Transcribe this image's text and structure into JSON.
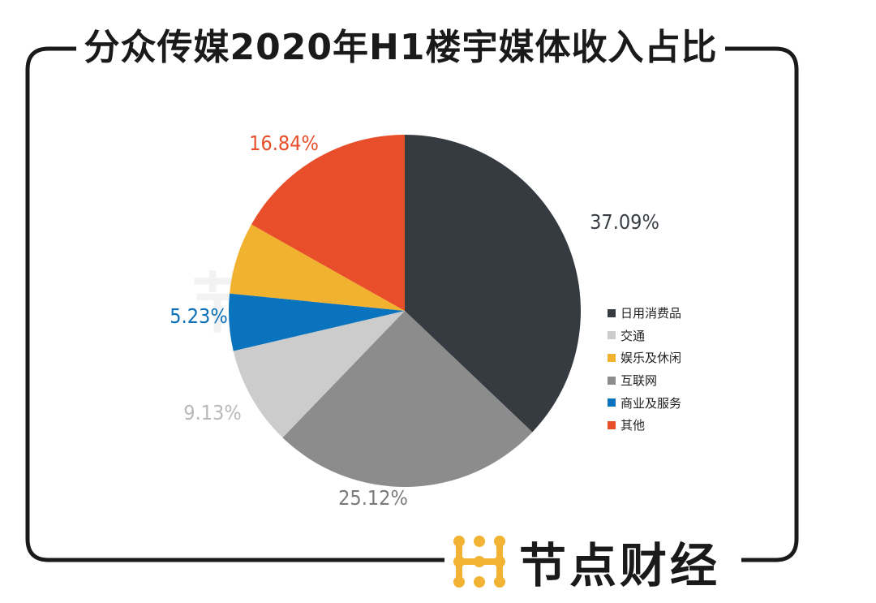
{
  "title": "分众传媒2020年H1楼宇媒体收入占比",
  "brand": {
    "name": "节点财经",
    "logo_color": "#f2b233"
  },
  "chart_data": {
    "type": "pie",
    "title": "分众传媒2020年H1楼宇媒体收入占比",
    "legend_position": "right",
    "slices": [
      {
        "label": "日用消费品",
        "value": 37.09,
        "value_label": "37.09%",
        "color": "#363b41",
        "label_color": "#3a3f45"
      },
      {
        "label": "互联网",
        "value": 25.12,
        "value_label": "25.12%",
        "color": "#8c8c8c",
        "label_color": "#7a7a7a"
      },
      {
        "label": "交通",
        "value": 9.13,
        "value_label": "9.13%",
        "color": "#cccccc",
        "label_color": "#b9b9b9"
      },
      {
        "label": "商业及服务",
        "value": 5.23,
        "value_label": "5.23%",
        "color": "#0a73bd",
        "label_color": "#0a6fb7"
      },
      {
        "label": "娱乐及休闲",
        "value": 6.59,
        "value_label": "",
        "color": "#f0b22f",
        "label_color": "#f0b22f"
      },
      {
        "label": "其他",
        "value": 16.84,
        "value_label": "16.84%",
        "color": "#e84e2a",
        "label_color": "#e84e2a"
      }
    ],
    "legend": [
      {
        "label": "日用消费品",
        "color": "#363b41"
      },
      {
        "label": "交通",
        "color": "#cccccc"
      },
      {
        "label": "娱乐及休闲",
        "color": "#f0b22f"
      },
      {
        "label": "互联网",
        "color": "#8c8c8c"
      },
      {
        "label": "商业及服务",
        "color": "#0a73bd"
      },
      {
        "label": "其他",
        "color": "#e84e2a"
      }
    ]
  }
}
